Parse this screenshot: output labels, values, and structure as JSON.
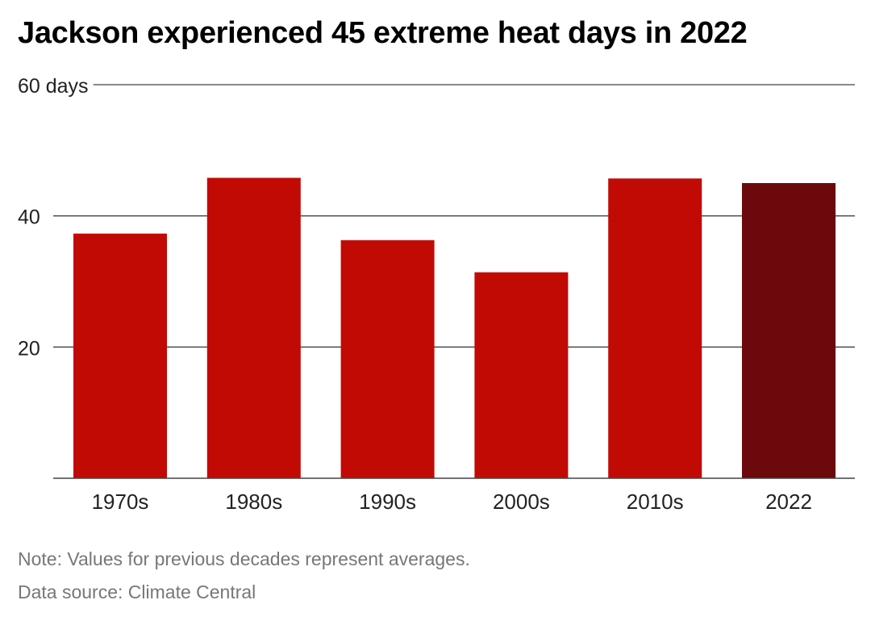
{
  "title": "Jackson experienced 45 extreme heat days in 2022",
  "note": "Note: Values for previous decades represent averages.",
  "source": "Data source: Climate Central",
  "colors": {
    "bar": "#c20a05",
    "highlight": "#6b090c",
    "grid": "#444444",
    "text": "#222222",
    "muted": "#777777"
  },
  "chart_data": {
    "type": "bar",
    "title": "Jackson experienced 45 extreme heat days in 2022",
    "xlabel": "",
    "ylabel": "",
    "categories": [
      "1970s",
      "1980s",
      "1990s",
      "2000s",
      "2010s",
      "2022"
    ],
    "values": [
      37.3,
      45.8,
      36.3,
      31.4,
      45.7,
      45
    ],
    "highlight_category": "2022",
    "ylim": [
      0,
      60
    ],
    "yticks": [
      20,
      40,
      60
    ],
    "ytick_labels": [
      "20",
      "40",
      "60 days"
    ],
    "grid": true
  }
}
